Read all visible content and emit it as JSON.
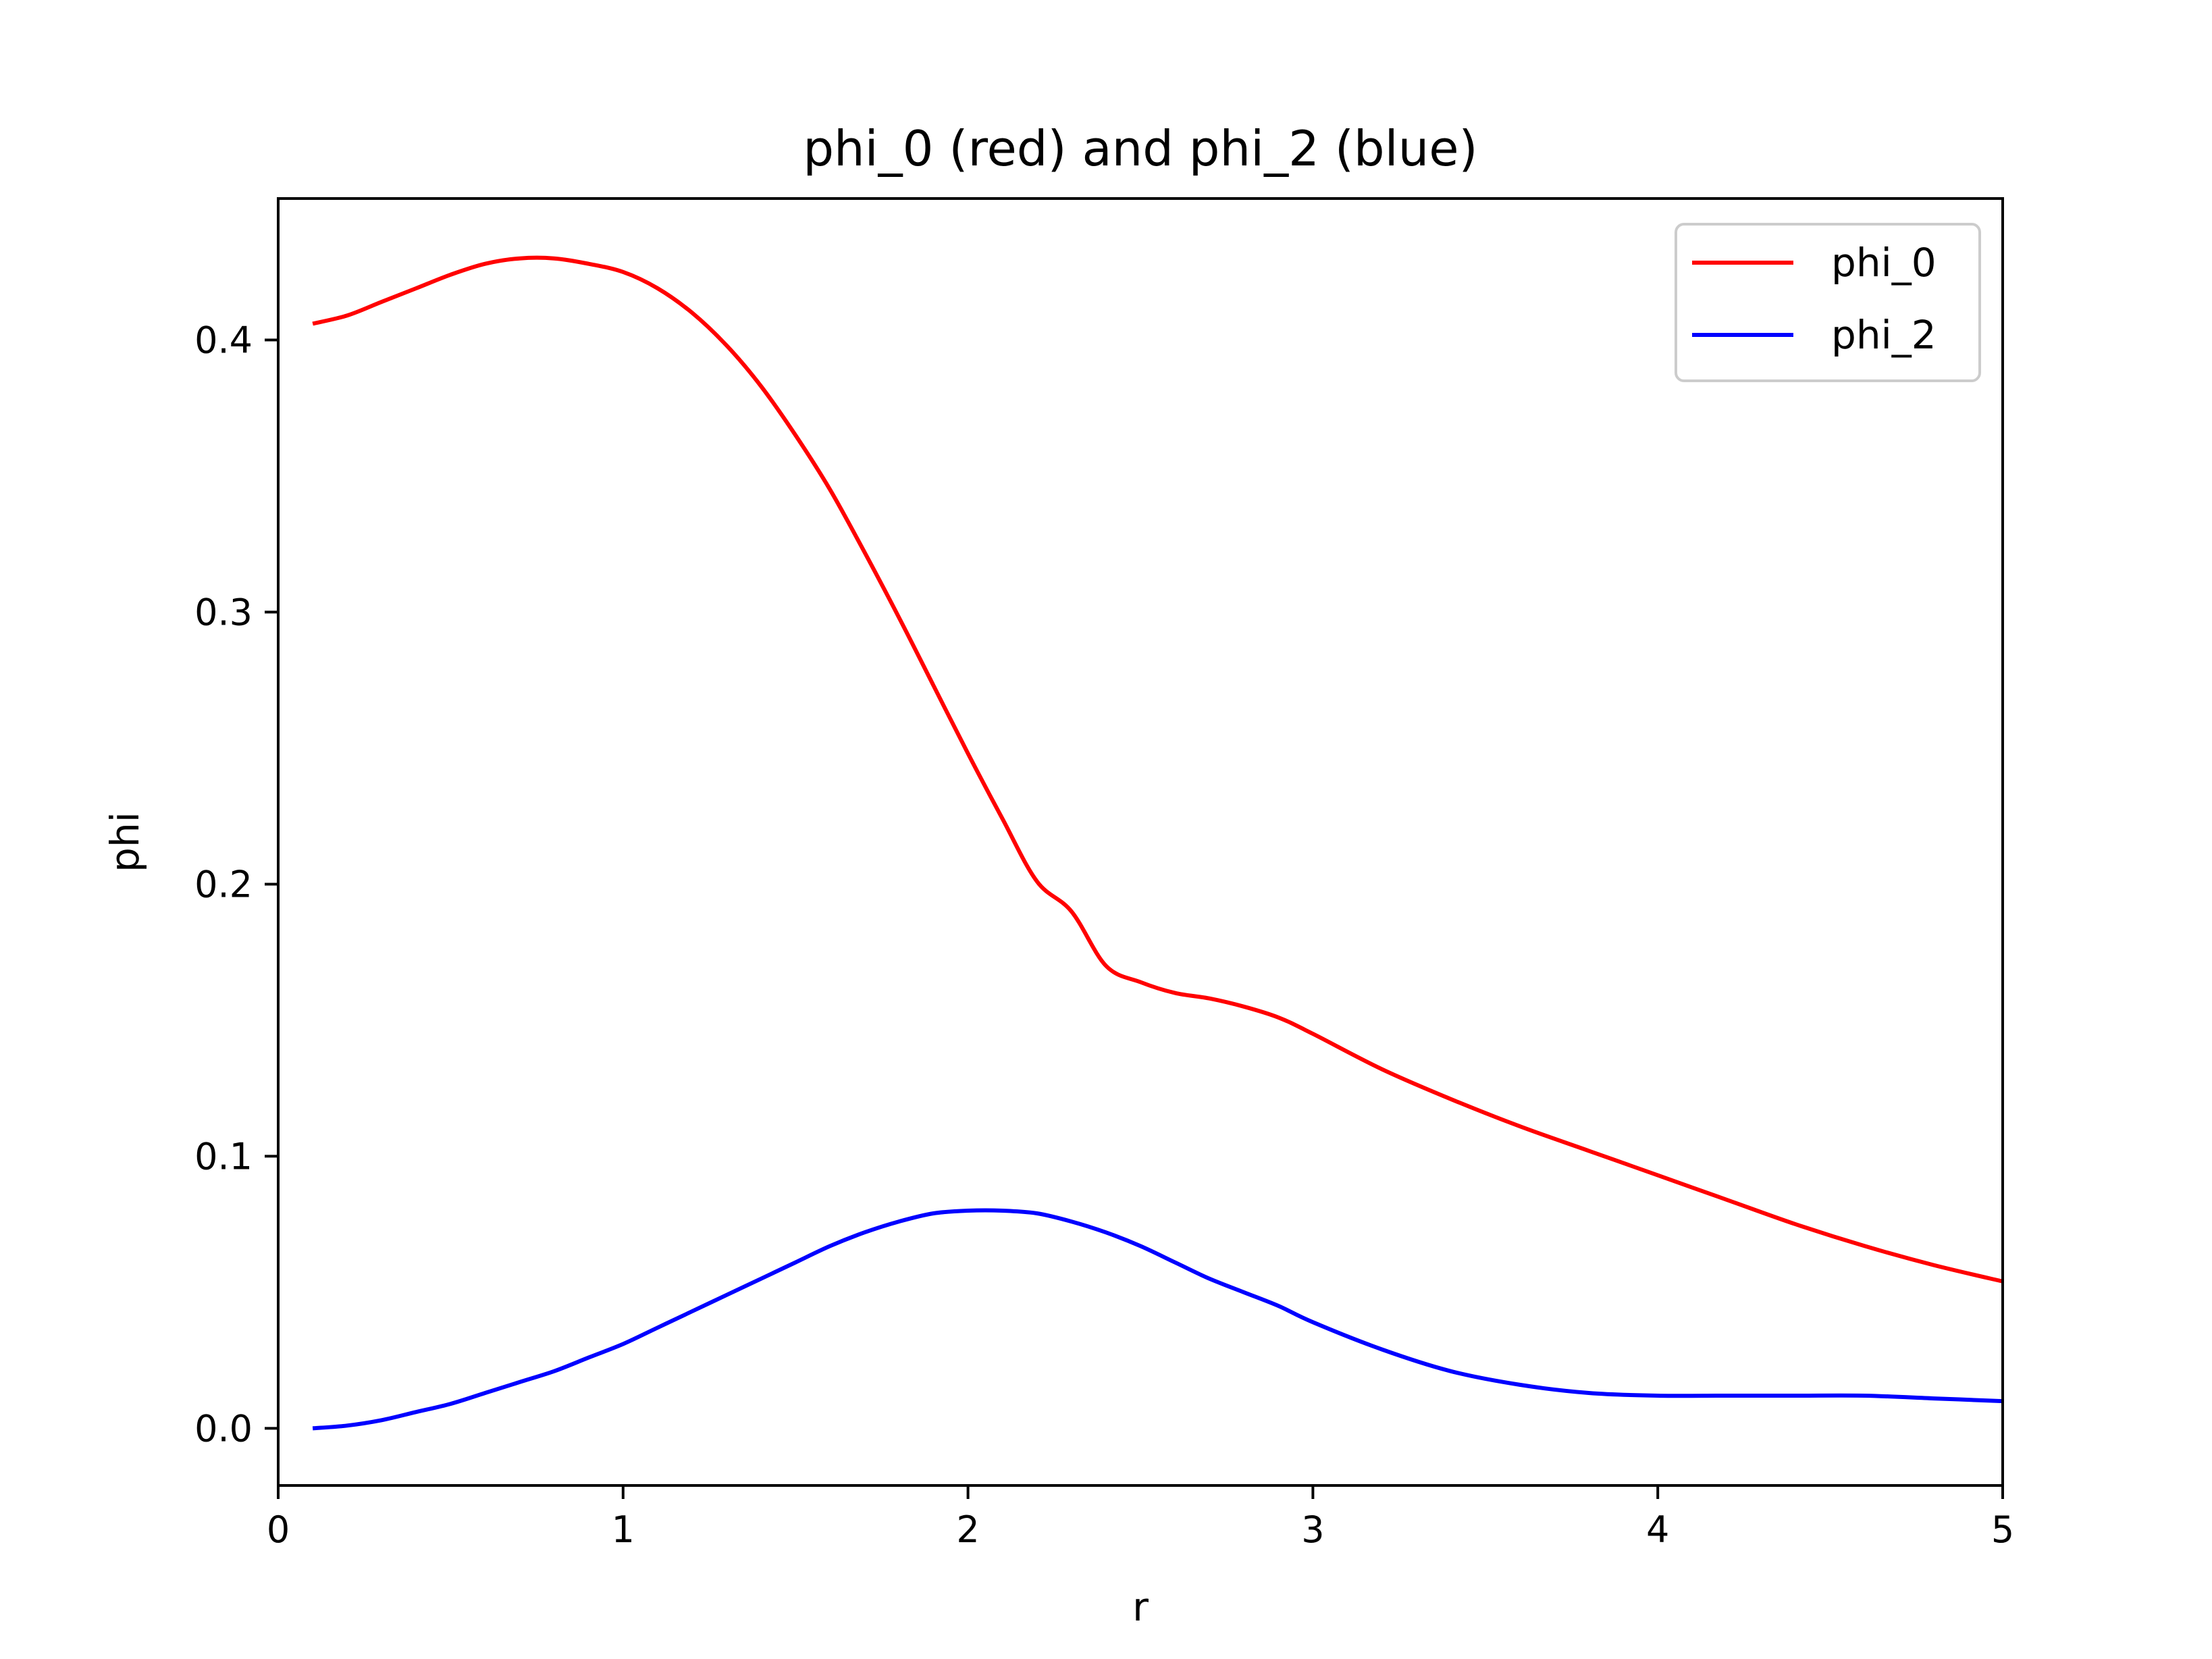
{
  "chart_data": {
    "type": "line",
    "title": "phi_0 (red) and phi_2 (blue)",
    "xlabel": "r",
    "ylabel": "phi",
    "xlim": [
      0,
      5
    ],
    "ylim": [
      -0.021,
      0.452
    ],
    "x_ticks": [
      0,
      1,
      2,
      3,
      4,
      5
    ],
    "x_tick_labels": [
      "0",
      "1",
      "2",
      "3",
      "4",
      "5"
    ],
    "y_ticks": [
      0.0,
      0.1,
      0.2,
      0.3,
      0.4
    ],
    "y_tick_labels": [
      "0.0",
      "0.1",
      "0.2",
      "0.3",
      "0.4"
    ],
    "grid": false,
    "legend_position": "top-right",
    "series": [
      {
        "name": "phi_0",
        "color": "#ff0000",
        "x": [
          0.1,
          0.2,
          0.3,
          0.4,
          0.5,
          0.6,
          0.7,
          0.8,
          0.9,
          1.0,
          1.1,
          1.2,
          1.3,
          1.4,
          1.5,
          1.6,
          1.7,
          1.8,
          1.9,
          2.0,
          2.1,
          2.2,
          2.3,
          2.4,
          2.5,
          2.6,
          2.7,
          2.8,
          2.9,
          3.0,
          3.2,
          3.4,
          3.6,
          3.8,
          4.0,
          4.2,
          4.4,
          4.6,
          4.8,
          5.0
        ],
        "y": [
          0.406,
          0.409,
          0.414,
          0.419,
          0.424,
          0.428,
          0.43,
          0.43,
          0.428,
          0.425,
          0.419,
          0.41,
          0.398,
          0.383,
          0.365,
          0.345,
          0.322,
          0.298,
          0.273,
          0.248,
          0.224,
          0.201,
          0.19,
          0.17,
          0.164,
          0.16,
          0.158,
          0.155,
          0.151,
          0.145,
          0.132,
          0.121,
          0.111,
          0.102,
          0.093,
          0.084,
          0.075,
          0.067,
          0.06,
          0.054
        ]
      },
      {
        "name": "phi_2",
        "color": "#0000ff",
        "x": [
          0.1,
          0.2,
          0.3,
          0.4,
          0.5,
          0.6,
          0.7,
          0.8,
          0.9,
          1.0,
          1.1,
          1.2,
          1.3,
          1.4,
          1.5,
          1.6,
          1.7,
          1.8,
          1.9,
          2.0,
          2.1,
          2.2,
          2.3,
          2.4,
          2.5,
          2.6,
          2.7,
          2.8,
          2.9,
          3.0,
          3.2,
          3.4,
          3.6,
          3.8,
          4.0,
          4.2,
          4.4,
          4.6,
          4.8,
          5.0
        ],
        "y": [
          0.0,
          0.001,
          0.003,
          0.006,
          0.009,
          0.013,
          0.017,
          0.021,
          0.026,
          0.031,
          0.037,
          0.043,
          0.049,
          0.055,
          0.061,
          0.067,
          0.072,
          0.076,
          0.079,
          0.08,
          0.08,
          0.079,
          0.076,
          0.072,
          0.067,
          0.061,
          0.055,
          0.05,
          0.045,
          0.039,
          0.029,
          0.021,
          0.016,
          0.013,
          0.012,
          0.012,
          0.012,
          0.012,
          0.011,
          0.01
        ]
      }
    ]
  }
}
